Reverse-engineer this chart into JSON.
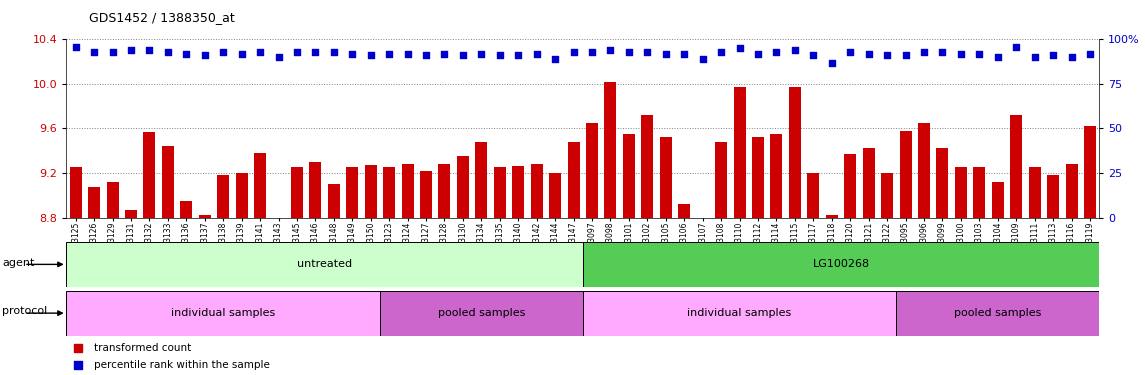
{
  "title": "GDS1452 / 1388350_at",
  "samples": [
    "GSM43125",
    "GSM43126",
    "GSM43129",
    "GSM43131",
    "GSM43132",
    "GSM43133",
    "GSM43136",
    "GSM43137",
    "GSM43138",
    "GSM43139",
    "GSM43141",
    "GSM43143",
    "GSM43145",
    "GSM43146",
    "GSM43148",
    "GSM43149",
    "GSM43150",
    "GSM43123",
    "GSM43124",
    "GSM43127",
    "GSM43128",
    "GSM43130",
    "GSM43134",
    "GSM43135",
    "GSM43140",
    "GSM43142",
    "GSM43144",
    "GSM43147",
    "GSM43097",
    "GSM43098",
    "GSM43101",
    "GSM43102",
    "GSM43105",
    "GSM43106",
    "GSM43107",
    "GSM43108",
    "GSM43110",
    "GSM43112",
    "GSM43114",
    "GSM43115",
    "GSM43117",
    "GSM43118",
    "GSM43120",
    "GSM43121",
    "GSM43122",
    "GSM43095",
    "GSM43096",
    "GSM43099",
    "GSM43100",
    "GSM43103",
    "GSM43104",
    "GSM43109",
    "GSM43111",
    "GSM43113",
    "GSM43116",
    "GSM43119"
  ],
  "bar_values": [
    9.25,
    9.07,
    9.12,
    8.87,
    9.57,
    9.44,
    8.95,
    8.82,
    9.18,
    9.2,
    9.38,
    8.79,
    9.25,
    9.3,
    9.1,
    9.25,
    9.27,
    9.25,
    9.28,
    9.22,
    9.28,
    9.35,
    9.48,
    9.25,
    9.26,
    9.28,
    9.2,
    9.48,
    9.65,
    10.02,
    9.55,
    9.72,
    9.52,
    8.92,
    8.78,
    9.48,
    9.97,
    9.52,
    9.55,
    9.97,
    9.2,
    8.82,
    9.37,
    9.42,
    9.2,
    9.58,
    9.65,
    9.42,
    9.25,
    9.25,
    9.12,
    9.72,
    9.25,
    9.18,
    9.28,
    9.62
  ],
  "percentile_values": [
    96,
    93,
    93,
    94,
    94,
    93,
    92,
    91,
    93,
    92,
    93,
    90,
    93,
    93,
    93,
    92,
    91,
    92,
    92,
    91,
    92,
    91,
    92,
    91,
    91,
    92,
    89,
    93,
    93,
    94,
    93,
    93,
    92,
    92,
    89,
    93,
    95,
    92,
    93,
    94,
    91,
    87,
    93,
    92,
    91,
    91,
    93,
    93,
    92,
    92,
    90,
    96,
    90,
    91,
    90,
    92
  ],
  "ylim_left": [
    8.8,
    10.4
  ],
  "yticks_left": [
    8.8,
    9.2,
    9.6,
    10.0,
    10.4
  ],
  "ylim_right": [
    0,
    100
  ],
  "yticks_right": [
    0,
    25,
    50,
    75,
    100
  ],
  "ytick_right_labels": [
    "0",
    "25",
    "50",
    "75",
    "100%"
  ],
  "bar_color": "#cc0000",
  "dot_color": "#0000cc",
  "agent_groups": [
    {
      "label": "untreated",
      "start": 0,
      "end": 27,
      "color": "#ccffcc"
    },
    {
      "label": "LG100268",
      "start": 28,
      "end": 55,
      "color": "#55cc55"
    }
  ],
  "protocol_groups": [
    {
      "label": "individual samples",
      "start": 0,
      "end": 16,
      "color": "#ffaaff"
    },
    {
      "label": "pooled samples",
      "start": 17,
      "end": 27,
      "color": "#cc66cc"
    },
    {
      "label": "individual samples",
      "start": 28,
      "end": 44,
      "color": "#ffaaff"
    },
    {
      "label": "pooled samples",
      "start": 45,
      "end": 55,
      "color": "#cc66cc"
    }
  ],
  "legend_items": [
    {
      "label": "transformed count",
      "color": "#cc0000"
    },
    {
      "label": "percentile rank within the sample",
      "color": "#0000cc"
    }
  ]
}
